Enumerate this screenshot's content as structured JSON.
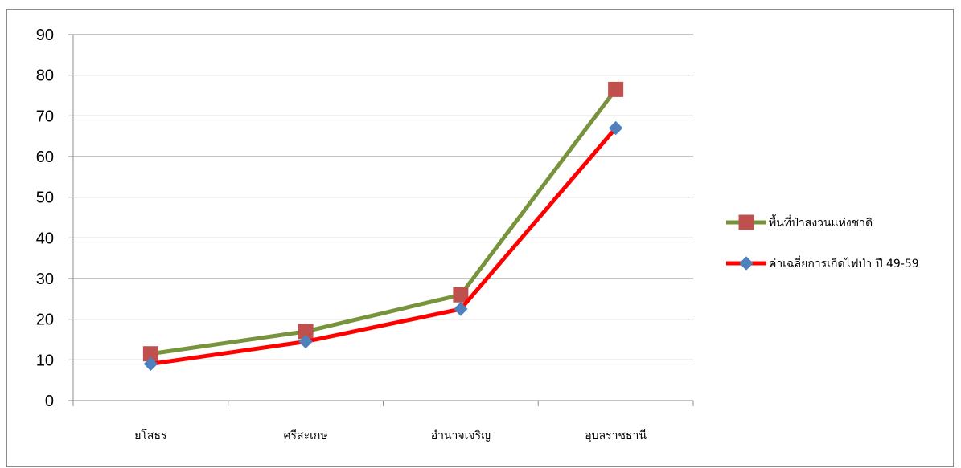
{
  "chart_data": {
    "type": "line",
    "title": "",
    "xlabel": "",
    "ylabel": "",
    "categories": [
      "ยโสธร",
      "ศรีสะเกษ",
      "อำนาจเจริญ",
      "อุบลราชธานี"
    ],
    "ylim": [
      0,
      90
    ],
    "yticks": [
      0,
      10,
      20,
      30,
      40,
      50,
      60,
      70,
      80,
      90
    ],
    "grid": true,
    "legend_position": "right",
    "series": [
      {
        "name": "พื้นที่ป่าสงวนแห่งชาติ",
        "values": [
          11.5,
          17,
          26,
          76.5
        ],
        "line_color": "#77933c",
        "marker": "square",
        "marker_color": "#c0504d"
      },
      {
        "name": "ค่าเฉลี่ยการเกิดไฟป่า ปี 49-59",
        "values": [
          9,
          14.5,
          22.5,
          67
        ],
        "line_color": "#ff0000",
        "marker": "diamond",
        "marker_color": "#4f81bd"
      }
    ]
  }
}
